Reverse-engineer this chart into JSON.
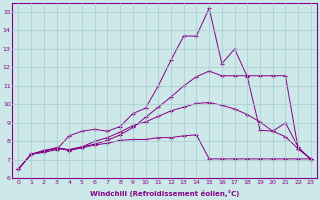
{
  "background_color": "#cce8e8",
  "grid_color": "#aacccc",
  "line_color": "#880088",
  "marker": "+",
  "xlim": [
    -0.5,
    23.5
  ],
  "ylim": [
    6,
    15.5
  ],
  "xticks": [
    0,
    1,
    2,
    3,
    4,
    5,
    6,
    7,
    8,
    9,
    10,
    11,
    12,
    13,
    14,
    15,
    16,
    17,
    18,
    19,
    20,
    21,
    22,
    23
  ],
  "yticks": [
    6,
    7,
    8,
    9,
    10,
    11,
    12,
    13,
    14,
    15
  ],
  "xlabel": "Windchill (Refroidissement éolien,°C)",
  "series": [
    [
      6.5,
      7.3,
      7.4,
      7.55,
      8.3,
      8.55,
      8.65,
      8.55,
      8.8,
      9.5,
      9.8,
      11.0,
      12.4,
      13.7,
      13.7,
      15.2,
      12.2,
      13.0,
      11.5,
      8.6,
      8.55,
      9.0,
      7.7,
      7.0
    ],
    [
      6.5,
      7.3,
      7.5,
      7.6,
      7.55,
      7.7,
      7.85,
      8.05,
      8.35,
      8.75,
      9.3,
      9.85,
      10.4,
      11.0,
      11.5,
      11.8,
      11.55,
      11.55,
      11.55,
      11.55,
      11.55,
      11.55,
      7.6,
      7.05
    ],
    [
      6.5,
      7.3,
      7.45,
      7.65,
      7.55,
      7.7,
      8.0,
      8.2,
      8.5,
      8.85,
      9.05,
      9.35,
      9.65,
      9.85,
      10.05,
      10.1,
      9.95,
      9.75,
      9.45,
      9.05,
      8.55,
      8.25,
      7.6,
      7.05
    ],
    [
      6.5,
      7.3,
      7.5,
      7.65,
      7.5,
      7.65,
      7.8,
      7.9,
      8.05,
      8.1,
      8.1,
      8.2,
      8.2,
      8.3,
      8.35,
      7.05,
      7.05,
      7.05,
      7.05,
      7.05,
      7.05,
      7.05,
      7.05,
      7.05
    ]
  ]
}
